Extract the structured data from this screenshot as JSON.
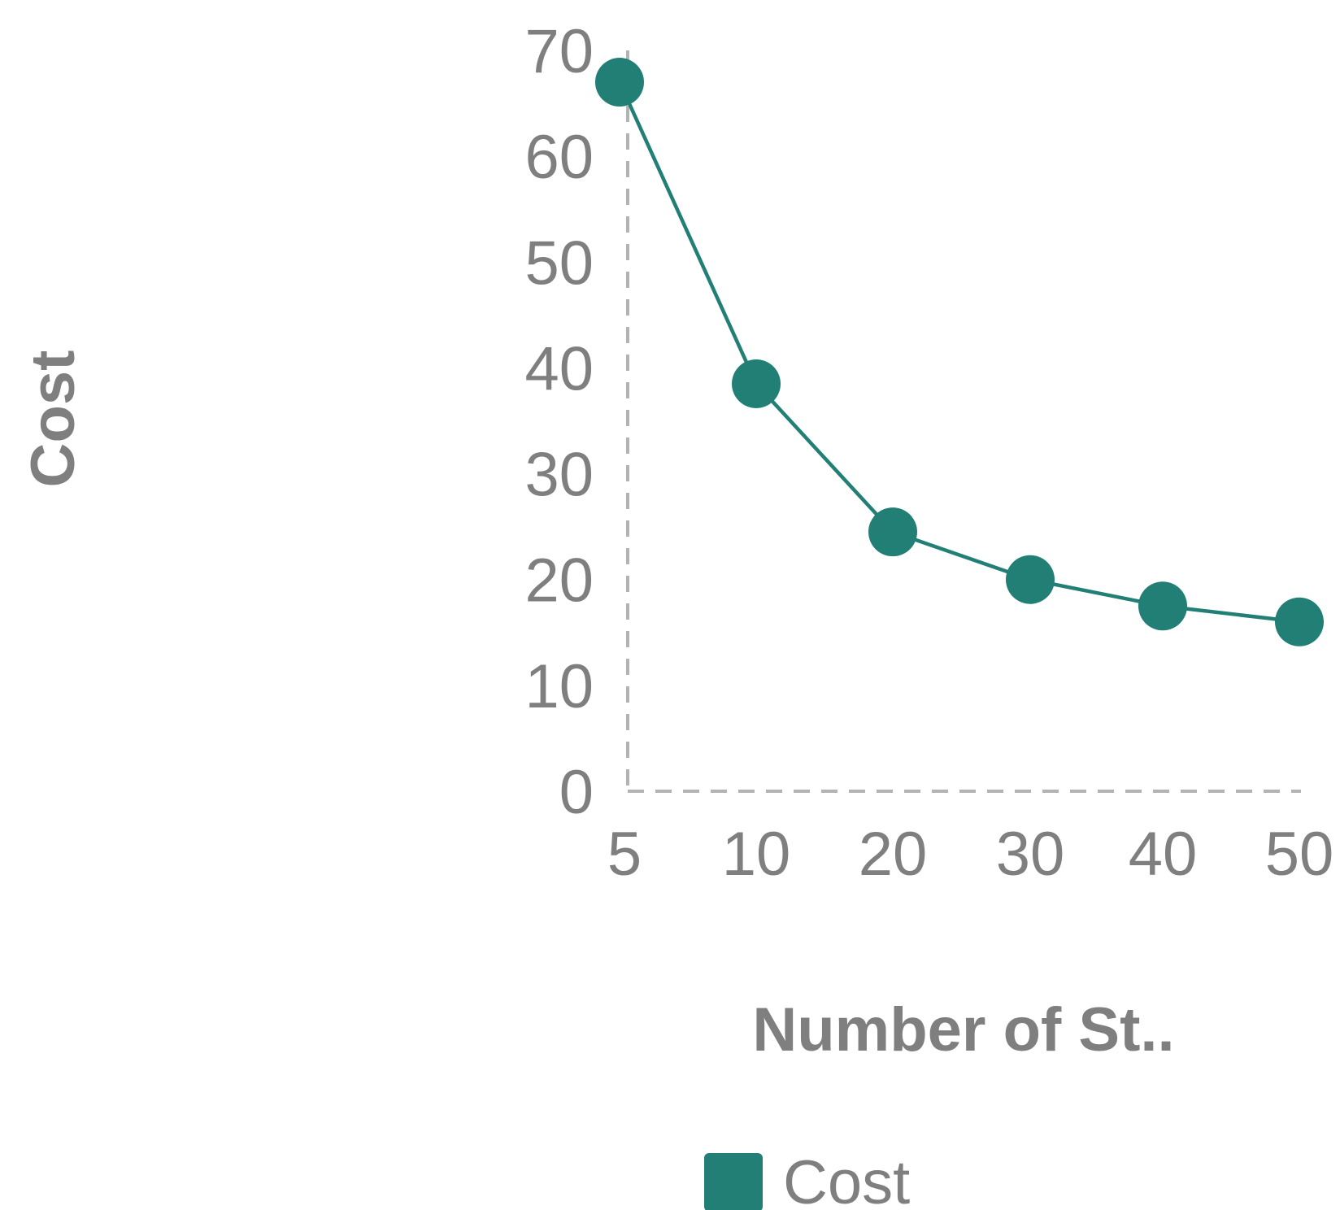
{
  "colors": {
    "series": "#217f75",
    "axis": "#b3b3b3",
    "text": "#7f7f7f"
  },
  "chart_data": {
    "type": "line",
    "x": [
      "5",
      "10",
      "20",
      "30",
      "40",
      "50"
    ],
    "series": [
      {
        "name": "Cost",
        "values": [
          67,
          38.5,
          24.5,
          20,
          17.5,
          16
        ]
      }
    ],
    "xlabel": "Number of St..",
    "ylabel": "Cost",
    "ylim": [
      0,
      70
    ],
    "yticks": [
      "0",
      "10",
      "20",
      "30",
      "40",
      "50",
      "60",
      "70"
    ],
    "grid": false,
    "axis_lines": "dashed",
    "legend": {
      "position": "bottom",
      "entries": [
        "Cost"
      ]
    }
  }
}
